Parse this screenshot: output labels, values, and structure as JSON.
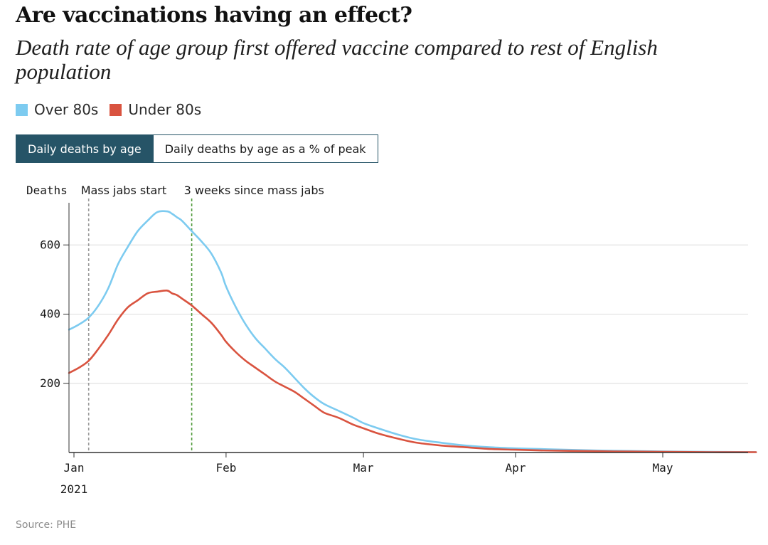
{
  "title": "Are vaccinations having an effect?",
  "subtitle": "Death rate of age group first offered vaccine compared to rest of English population",
  "tabs": [
    {
      "label": "Daily deaths by age",
      "active": true
    },
    {
      "label": "Daily deaths by age as a % of peak",
      "active": false
    }
  ],
  "source": "Source: PHE",
  "colors": {
    "over80": "#7dcbf0",
    "under80": "#d9533f",
    "grid": "#dcdcdc",
    "mass_jabs": "#999999",
    "three_weeks": "#4f9a3a",
    "tab_active": "#265467"
  },
  "chart_data": {
    "type": "line",
    "title": "Are vaccinations having an effect?",
    "ylabel": "Deaths",
    "xlabel": "",
    "ylim": [
      0,
      700
    ],
    "xlim": [
      0,
      139
    ],
    "yticks": [
      200,
      400,
      600
    ],
    "ytick_labels": [
      "200",
      "400",
      "600"
    ],
    "xticks": [
      {
        "day": 0,
        "label": "Jan"
      },
      {
        "day": 31,
        "label": "Feb"
      },
      {
        "day": 59,
        "label": "Mar"
      },
      {
        "day": 90,
        "label": "Apr"
      },
      {
        "day": 120,
        "label": "May"
      }
    ],
    "year_label": "2021",
    "legend": [
      {
        "name": "Over 80s",
        "color": "#7dcbf0"
      },
      {
        "name": "Under 80s",
        "color": "#d9533f"
      }
    ],
    "annotations": [
      {
        "label": "Mass jabs start",
        "day": 3,
        "style": "dashed-grey"
      },
      {
        "label": "3 weeks since mass jabs",
        "day": 24,
        "style": "dashed-green"
      }
    ],
    "series": [
      {
        "name": "Over 80s",
        "color": "#7dcbf0",
        "x": [
          -1,
          1,
          3,
          5,
          7,
          9,
          11,
          13,
          15,
          17,
          19,
          20,
          21,
          22,
          24,
          26,
          28,
          30,
          31,
          33,
          35,
          37,
          39,
          41,
          43,
          45,
          47,
          49,
          51,
          54,
          57,
          59,
          62,
          66,
          70,
          75,
          80,
          85,
          90,
          95,
          100,
          110,
          120,
          130,
          139
        ],
        "values": [
          355,
          370,
          390,
          425,
          475,
          545,
          595,
          640,
          670,
          695,
          697,
          690,
          680,
          670,
          640,
          610,
          575,
          520,
          480,
          420,
          370,
          330,
          300,
          270,
          245,
          215,
          185,
          160,
          140,
          120,
          100,
          85,
          70,
          52,
          38,
          28,
          20,
          15,
          12,
          10,
          8,
          5,
          3,
          2,
          1
        ]
      },
      {
        "name": "Under 80s",
        "color": "#d9533f",
        "x": [
          -1,
          1,
          3,
          5,
          7,
          9,
          11,
          13,
          15,
          17,
          19,
          20,
          21,
          22,
          24,
          26,
          28,
          30,
          31,
          33,
          35,
          37,
          39,
          41,
          43,
          45,
          47,
          49,
          51,
          54,
          57,
          59,
          62,
          66,
          70,
          75,
          80,
          85,
          90,
          95,
          100,
          110,
          120,
          130,
          139
        ],
        "values": [
          230,
          245,
          265,
          300,
          340,
          385,
          420,
          440,
          460,
          465,
          468,
          460,
          455,
          445,
          425,
          400,
          375,
          340,
          320,
          290,
          265,
          245,
          225,
          205,
          190,
          175,
          155,
          135,
          115,
          100,
          80,
          70,
          55,
          40,
          28,
          20,
          15,
          10,
          8,
          6,
          5,
          3,
          2,
          1,
          1
        ]
      }
    ]
  }
}
